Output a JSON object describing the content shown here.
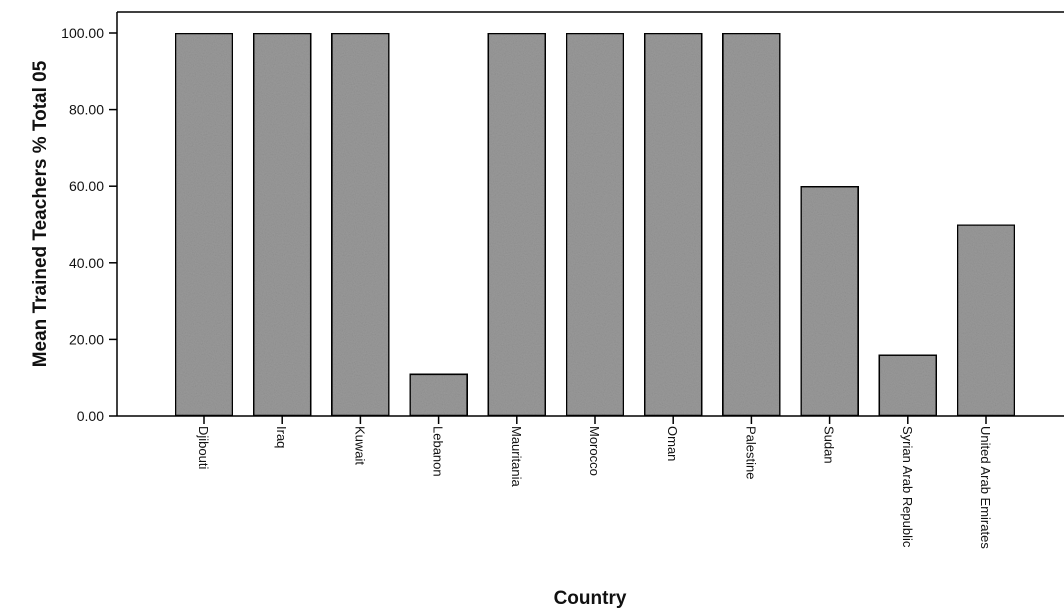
{
  "chart_data": {
    "type": "bar",
    "categories": [
      "Djibouti",
      "Iraq",
      "Kuwait",
      "Lebanon",
      "Mauritania",
      "Morocco",
      "Oman",
      "Palestine",
      "Sudan",
      "Syrian Arab Republic",
      "United Arab Emirates"
    ],
    "values": [
      100.0,
      100.0,
      100.0,
      11.0,
      100.0,
      100.0,
      100.0,
      100.0,
      60.0,
      16.0,
      50.0
    ],
    "yticks": [
      "0.00",
      "20.00",
      "40.00",
      "60.00",
      "80.00",
      "100.00"
    ],
    "xlabel": "Country",
    "ylabel": "Mean Trained Teachers % Total 05",
    "ylim": [
      0,
      100
    ],
    "grid": false,
    "bar_color": "#9a9a9a"
  }
}
